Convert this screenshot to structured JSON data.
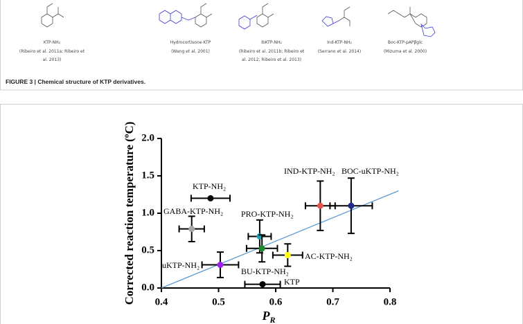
{
  "figure": {
    "structures": [
      {
        "name": "KTP-NH₂",
        "citation": [
          "(Ribeiro et al. 2011a; Ribeiro et",
          "al. 2013)"
        ]
      },
      {
        "name": "Hydrocortisone-KTP",
        "citation": [
          "(Wang et al. 2001)"
        ]
      },
      {
        "name": "IbKTP-NH₂",
        "citation": [
          "(Ribeiro et al. 2011b; Ribeiro et",
          "al. 2012; Ribeiro et al. 2013)"
        ]
      },
      {
        "name": "Ind-KTP-NH₂",
        "citation": [
          "(Serrano et al. 2014)"
        ]
      },
      {
        "name": "Boc-KTP-pAPβglc",
        "citation": [
          "(Mizuma et al. 2000)"
        ]
      }
    ],
    "caption_label": "FIGURE 3 |",
    "caption": "Chemical structure of KTP derivatives."
  },
  "chart_data": {
    "type": "scatter",
    "y_label": "Corrected reaction temperature (ºC)",
    "x_label_main": "P",
    "x_label_sub": "R",
    "xlim": [
      0.4,
      0.8
    ],
    "ylim": [
      0.0,
      2.0
    ],
    "xticks": [
      0.4,
      0.5,
      0.6,
      0.7,
      0.8
    ],
    "yticks": [
      {
        "value": 0,
        "label": "0.0"
      },
      0.5,
      {
        "value": 1,
        "label": "1.0"
      },
      1.5,
      {
        "value": 2,
        "label": "2.0"
      }
    ],
    "trend_line": {
      "color": "#5b9bd5",
      "x": [
        0.4,
        0.815
      ],
      "y": [
        0,
        1.3
      ]
    },
    "series": [
      {
        "name": "KTP",
        "color": "#000000",
        "x": [
          0.577
        ],
        "values": [
          0.05
        ],
        "xerr": [
          0.031
        ]
      },
      {
        "name": "KTP-NH₂",
        "color": "#000000",
        "x": [
          0.486
        ],
        "values": [
          1.2
        ],
        "xerr": [
          0.034
        ]
      },
      {
        "name": "GABA-KTP-NH₂",
        "color": "#a6a6a6",
        "x": [
          0.453
        ],
        "values": [
          0.79
        ],
        "xerr": [
          0.022
        ],
        "yerr": [
          0.17
        ]
      },
      {
        "name": "IND-KTP-NH₂",
        "color": "#e8524f",
        "x": [
          0.678
        ],
        "values": [
          1.1
        ],
        "xerr": [
          0.026
        ],
        "yerr": [
          0.33
        ]
      },
      {
        "name": "BOC-uKTP-NH₂",
        "color": "#1f2a8a",
        "x": [
          0.732
        ],
        "values": [
          1.1
        ],
        "xerr": [
          0.037
        ],
        "yerr": [
          0.37
        ]
      },
      {
        "name": "PRO-KTP-NH₂",
        "color": "#1aa3b5",
        "x": [
          0.572
        ],
        "values": [
          0.69
        ],
        "xerr": [
          0.02
        ],
        "yerr": [
          0.22
        ]
      },
      {
        "name": "BU-KTP-NH₂",
        "color": "#1e8a2e",
        "x": [
          0.576
        ],
        "values": [
          0.53
        ],
        "xerr": [
          0.027
        ],
        "yerr": [
          0.18
        ]
      },
      {
        "name": "AC-KTP-NH₂",
        "color": "#ffff00",
        "x": [
          0.621
        ],
        "values": [
          0.44
        ],
        "xerr": [
          0.026
        ],
        "yerr": [
          0.15
        ]
      },
      {
        "name": "uKTP-NH₂",
        "color": "#a020f0",
        "x": [
          0.503
        ],
        "values": [
          0.31
        ],
        "xerr": [
          0.032
        ],
        "yerr": [
          0.17
        ]
      }
    ]
  }
}
